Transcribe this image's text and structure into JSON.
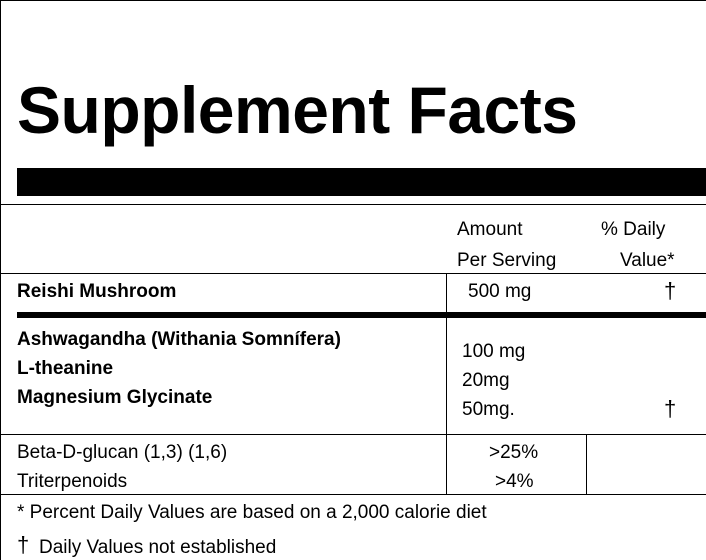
{
  "title": "Supplement Facts",
  "header": {
    "amount_line1": "Amount",
    "amount_line2": "Per Serving",
    "dv_line1": "% Daily",
    "dv_line2": "Value*"
  },
  "rows": [
    {
      "name": "Reishi Mushroom",
      "amount": "500 mg",
      "dv": "†"
    }
  ],
  "group2": {
    "names": [
      "Ashwagandha (Withania Somnífera)",
      "L-theanine",
      "Magnesium Glycinate"
    ],
    "amounts": [
      "100 mg",
      "20mg",
      "50mg."
    ],
    "dv": "†"
  },
  "group3": {
    "names": [
      "Beta-D-glucan (1,3) (1,6)",
      "Triterpenoids"
    ],
    "amounts": [
      ">25%",
      ">4%"
    ]
  },
  "footnotes": {
    "percent_note": "* Percent Daily Values are based on a 2,000 calorie diet",
    "dagger_symbol": "†",
    "dagger_note": "Daily Values not established"
  }
}
